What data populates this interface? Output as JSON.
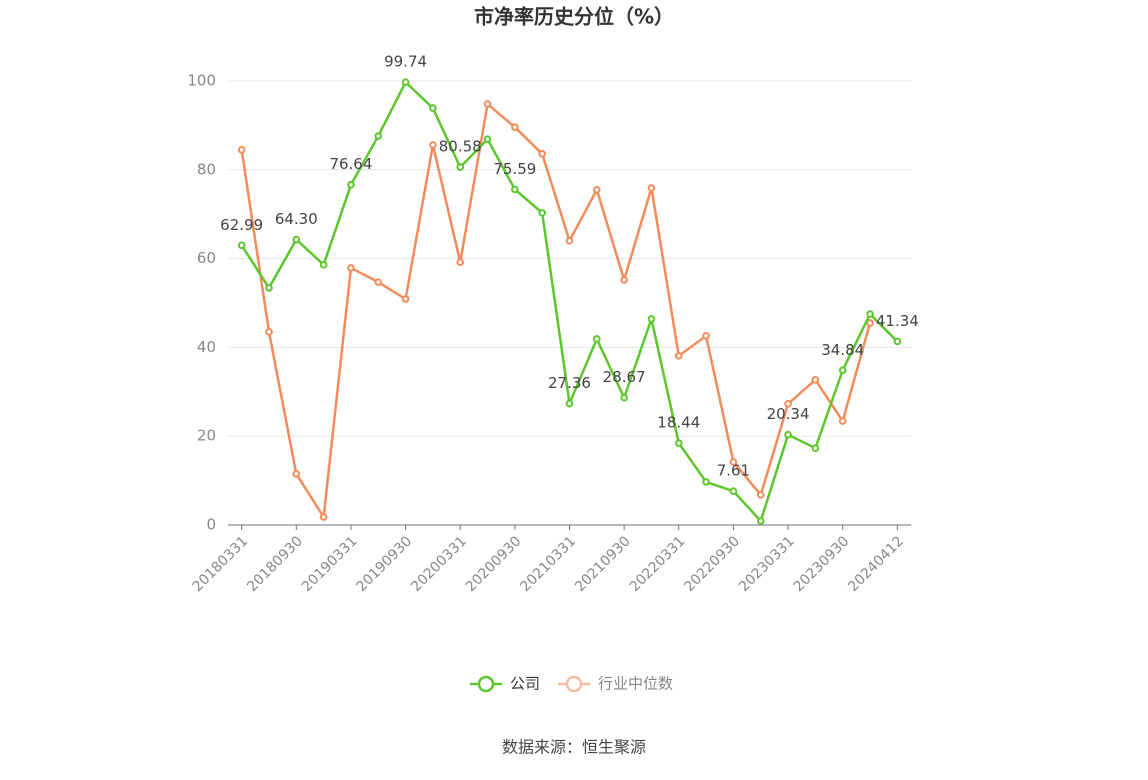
{
  "chart_data": {
    "type": "line",
    "title": "市净率历史分位（%）",
    "source": "数据来源：恒生聚源",
    "categories": [
      "20180331",
      null,
      "20180930",
      null,
      "20190331",
      null,
      "20190930",
      null,
      "20200331",
      null,
      "20200930",
      null,
      "20210331",
      null,
      "20210930",
      null,
      "20220331",
      null,
      "20220930",
      null,
      "20230331",
      null,
      "20230930",
      null,
      "20240412"
    ],
    "series": [
      {
        "name": "公司",
        "color": "#5cc72c",
        "values": [
          62.99,
          53.4,
          64.3,
          58.6,
          76.64,
          87.6,
          99.74,
          93.9,
          80.58,
          86.9,
          75.59,
          70.3,
          27.36,
          41.9,
          28.67,
          46.4,
          18.44,
          9.7,
          7.61,
          0.9,
          20.34,
          17.3,
          34.84,
          47.5,
          41.34
        ],
        "value_labels": [
          "62.99",
          null,
          "64.30",
          null,
          "76.64",
          null,
          "99.74",
          null,
          "80.58",
          null,
          "75.59",
          null,
          "27.36",
          null,
          "28.67",
          null,
          "18.44",
          null,
          "7.61",
          null,
          "20.34",
          null,
          "34.84",
          null,
          "41.34"
        ]
      },
      {
        "name": "行业中位数",
        "color": "#f28c5a",
        "values": [
          84.5,
          43.5,
          11.5,
          1.8,
          57.9,
          54.7,
          50.9,
          85.6,
          59.2,
          94.8,
          89.6,
          83.6,
          64.0,
          75.5,
          55.2,
          75.9,
          38.1,
          42.6,
          14.2,
          6.8,
          27.3,
          32.7,
          23.4,
          45.5,
          null
        ]
      }
    ],
    "ylim": [
      0,
      100
    ],
    "yticks": [
      0,
      20,
      40,
      60,
      80,
      100
    ],
    "grid": true
  }
}
